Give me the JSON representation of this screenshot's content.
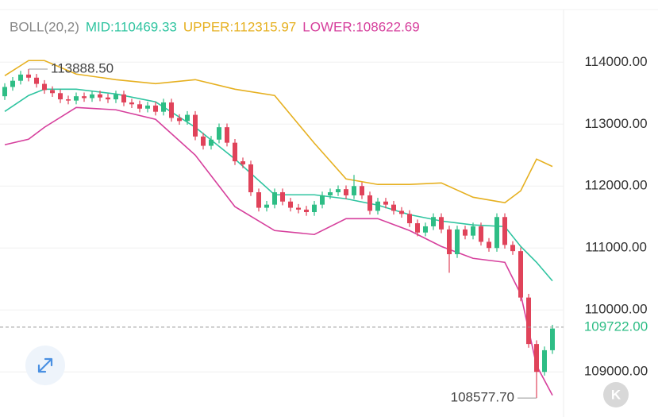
{
  "chart_data": {
    "type": "candlestick",
    "indicator": "BOLL(20,2)",
    "ylim": [
      108400,
      114850
    ],
    "yticks": [
      {
        "value": 114000,
        "label": "114000.00"
      },
      {
        "value": 113000,
        "label": "113000.00"
      },
      {
        "value": 112000,
        "label": "112000.00"
      },
      {
        "value": 111000,
        "label": "111000.00"
      },
      {
        "value": 110000,
        "label": "110000.00"
      },
      {
        "value": 109000,
        "label": "109000.00"
      }
    ],
    "grid": true,
    "candles": {
      "up_color": "#2ebd85",
      "down_color": "#e0435a",
      "open": [
        113450,
        113600,
        113700,
        113800,
        113750,
        113650,
        113550,
        113500,
        113400,
        113380,
        113450,
        113420,
        113480,
        113430,
        113400,
        113480,
        113350,
        113320,
        113250,
        113300,
        113200,
        113350,
        113100,
        113050,
        113150,
        112800,
        112650,
        112750,
        112950,
        112700,
        112400,
        112350,
        111900,
        111650,
        111700,
        111900,
        111750,
        111650,
        111620,
        111580,
        111700,
        111850,
        111900,
        111950,
        111850,
        112000,
        111850,
        111600,
        111750,
        111700,
        111600,
        111550,
        111400,
        111250,
        111350,
        111500,
        111300,
        110900,
        111300,
        111200,
        111350,
        111100,
        111000,
        111500,
        111050,
        110950,
        110200,
        109450,
        109000,
        109350
      ],
      "high": [
        113660,
        113760,
        113860,
        113888.5,
        113810,
        113710,
        113610,
        113560,
        113460,
        113510,
        113510,
        113540,
        113540,
        113490,
        113540,
        113540,
        113410,
        113380,
        113360,
        113360,
        113410,
        113410,
        113160,
        113210,
        113210,
        112860,
        112810,
        113010,
        113010,
        112760,
        112460,
        112410,
        111960,
        111760,
        111960,
        111960,
        111810,
        111710,
        111680,
        111760,
        111910,
        111960,
        112010,
        112010,
        112180,
        112060,
        111910,
        111810,
        111810,
        111760,
        111660,
        111610,
        111460,
        111410,
        111560,
        111560,
        111360,
        111360,
        111360,
        111410,
        111410,
        111160,
        111560,
        111560,
        111110,
        111010,
        110260,
        109510,
        109410,
        109760
      ],
      "low": [
        113390,
        113540,
        113640,
        113690,
        113590,
        113490,
        113440,
        113340,
        113320,
        113320,
        113360,
        113360,
        113370,
        113340,
        113340,
        113290,
        113260,
        113190,
        113190,
        113140,
        113140,
        113040,
        112990,
        112990,
        112740,
        112590,
        112590,
        112690,
        112640,
        112340,
        112290,
        111840,
        111590,
        111590,
        111640,
        111690,
        111590,
        111560,
        111520,
        111520,
        111640,
        111790,
        111840,
        111790,
        111790,
        111790,
        111540,
        111540,
        111640,
        111540,
        111490,
        111340,
        111190,
        111190,
        111290,
        111240,
        110600,
        110840,
        111140,
        111140,
        111040,
        110940,
        110940,
        110990,
        110890,
        110140,
        109390,
        108577.7,
        108940,
        109290
      ],
      "close": [
        113600,
        113700,
        113800,
        113750,
        113650,
        113550,
        113500,
        113400,
        113380,
        113450,
        113420,
        113480,
        113430,
        113400,
        113480,
        113350,
        113320,
        113250,
        113300,
        113200,
        113350,
        113100,
        113050,
        113150,
        112800,
        112650,
        112750,
        112950,
        112700,
        112400,
        112350,
        111900,
        111650,
        111700,
        111900,
        111750,
        111650,
        111620,
        111580,
        111700,
        111850,
        111900,
        111950,
        111850,
        112000,
        111850,
        111600,
        111750,
        111700,
        111600,
        111550,
        111400,
        111250,
        111350,
        111500,
        111300,
        110900,
        111300,
        111200,
        111350,
        111100,
        111000,
        111500,
        111050,
        110950,
        110200,
        109450,
        109000,
        109350,
        109700
      ]
    },
    "bands": [
      {
        "label": "MID:110469.33",
        "color": "#2fc4a0",
        "x": [
          0,
          3,
          5,
          9,
          14,
          19,
          24,
          29,
          34,
          39,
          43,
          47,
          51,
          55,
          59,
          63,
          65,
          67,
          69
        ],
        "values": [
          113205,
          113462,
          113564,
          113564,
          113487,
          113359,
          112949,
          112436,
          111859,
          111859,
          111795,
          111692,
          111538,
          111436,
          111372,
          111346,
          111026,
          110769,
          110469.33
        ]
      },
      {
        "label": "UPPER:112315.97",
        "color": "#e6b020",
        "x": [
          0,
          3,
          5,
          9,
          14,
          19,
          24,
          29,
          34,
          39,
          43,
          47,
          51,
          55,
          59,
          63,
          65,
          67,
          69
        ],
        "values": [
          113782,
          114026,
          114026,
          113808,
          113718,
          113654,
          113718,
          113564,
          113462,
          112692,
          112115,
          112026,
          112026,
          112051,
          111820,
          111731,
          111923,
          112436,
          112315.97
        ]
      },
      {
        "label": "LOWER:108622.69",
        "color": "#d63f9c",
        "x": [
          0,
          3,
          5,
          9,
          14,
          19,
          24,
          29,
          34,
          39,
          43,
          47,
          51,
          55,
          59,
          63,
          65,
          67,
          69
        ],
        "values": [
          112667,
          112756,
          112949,
          113269,
          113231,
          113077,
          112500,
          111667,
          111282,
          111218,
          111474,
          111474,
          111282,
          111026,
          110833,
          110769,
          110256,
          109103,
          108622.69
        ]
      }
    ],
    "max_label": "113888.50",
    "min_label": "108577.70",
    "last_price": {
      "value": 109722,
      "label": "109722.00",
      "color": "#2ebd85"
    },
    "k_button": "K"
  }
}
